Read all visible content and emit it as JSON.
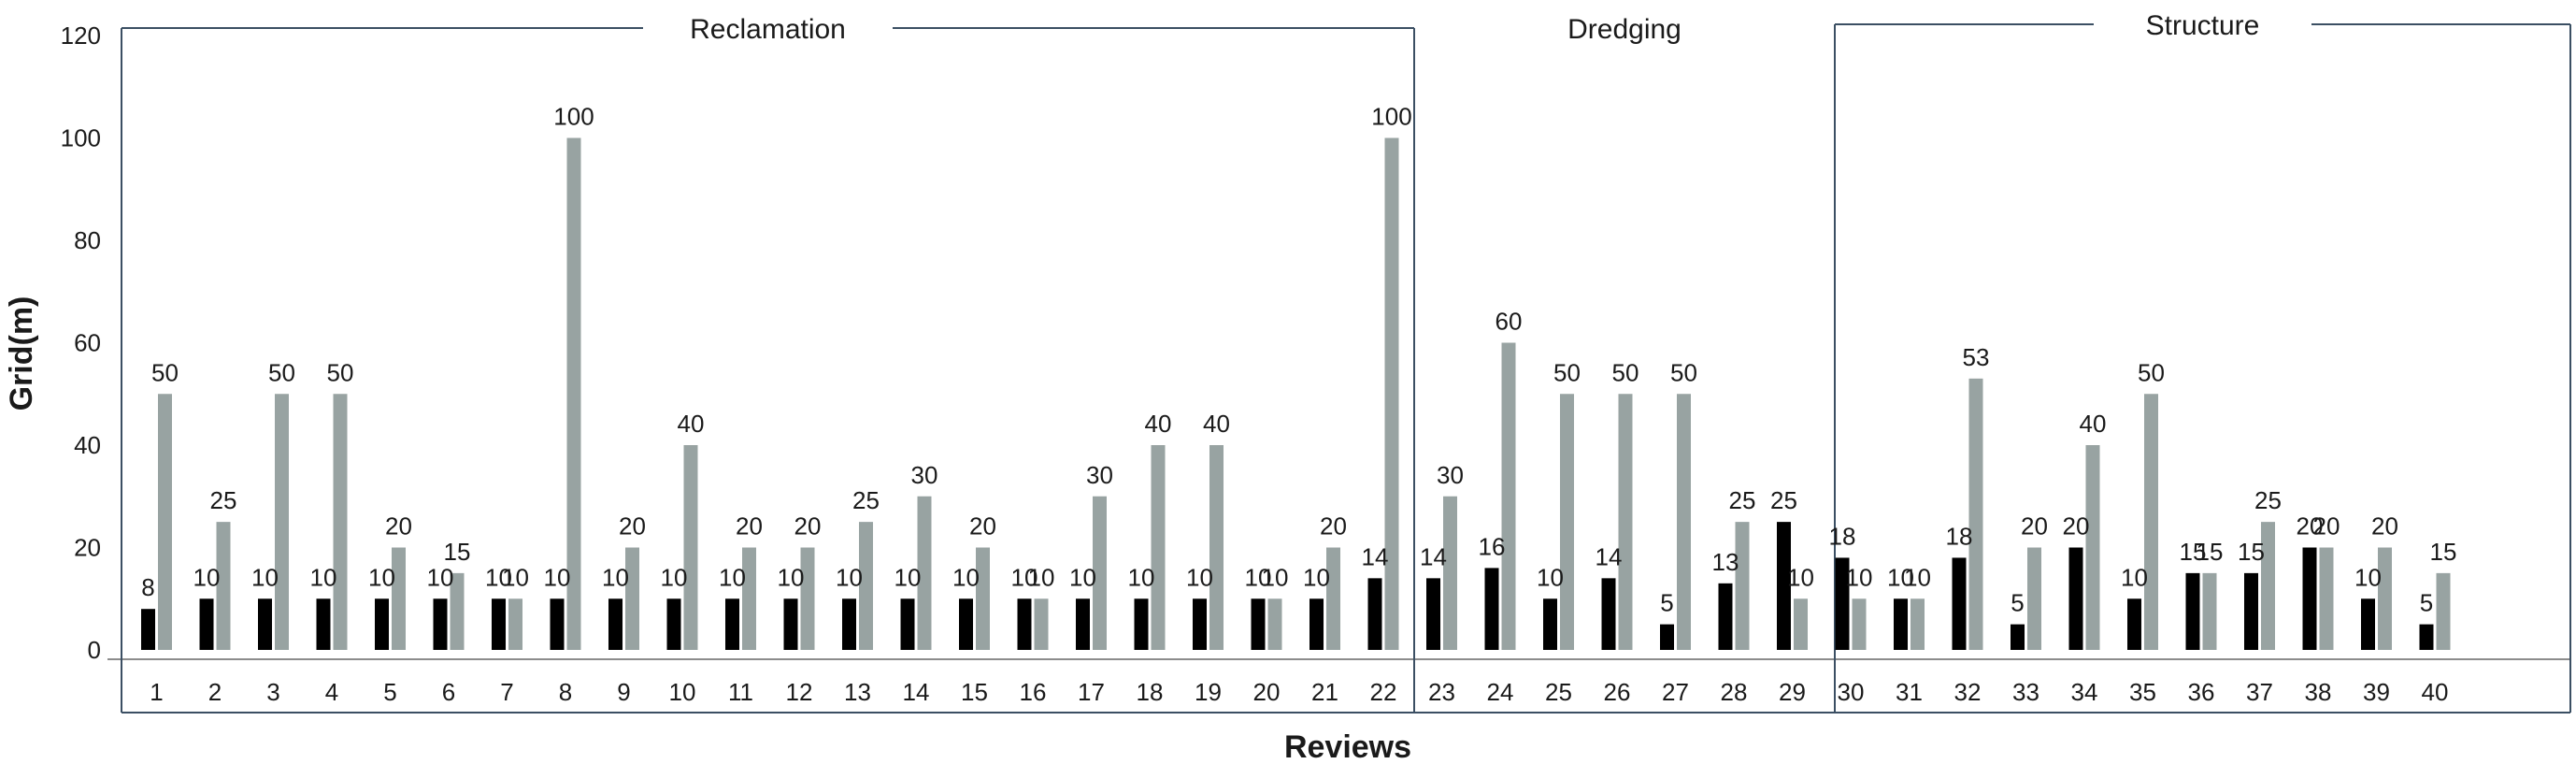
{
  "colors": {
    "series1": "#000000",
    "series2": "#98a3a2",
    "frame": "#3b4f63",
    "axis": "#8c8c8c"
  },
  "chart_data": {
    "type": "bar",
    "xlabel": "Reviews",
    "ylabel": "Grid(m)",
    "ylim": [
      0,
      120
    ],
    "yticks": [
      "0",
      "20",
      "40",
      "60",
      "80",
      "100",
      "120"
    ],
    "grid": false,
    "categories": [
      "1",
      "2",
      "3",
      "4",
      "5",
      "6",
      "7",
      "8",
      "9",
      "10",
      "11",
      "12",
      "13",
      "14",
      "15",
      "16",
      "17",
      "18",
      "19",
      "20",
      "21",
      "22",
      "23",
      "24",
      "25",
      "26",
      "27",
      "28",
      "29",
      "30",
      "31",
      "32",
      "33",
      "34",
      "35",
      "36",
      "37",
      "38",
      "39",
      "40"
    ],
    "series": [
      {
        "values": [
          8,
          10,
          10,
          10,
          10,
          10,
          10,
          10,
          10,
          10,
          10,
          10,
          10,
          10,
          10,
          10,
          10,
          10,
          10,
          10,
          10,
          14,
          14,
          16,
          10,
          14,
          5,
          13,
          25,
          18,
          10,
          18,
          5,
          20,
          10,
          15,
          15,
          20,
          10,
          5
        ]
      },
      {
        "values": [
          50,
          25,
          50,
          50,
          20,
          15,
          10,
          100,
          20,
          40,
          20,
          20,
          25,
          30,
          20,
          10,
          30,
          40,
          40,
          10,
          20,
          100,
          30,
          60,
          50,
          50,
          50,
          25,
          10,
          10,
          10,
          53,
          20,
          40,
          50,
          15,
          25,
          20,
          20,
          15
        ]
      }
    ],
    "groups": [
      {
        "label": "Reclamation",
        "from": 1,
        "to": 21
      },
      {
        "label": "Dredging",
        "from": 22,
        "to": 28
      },
      {
        "label": "Structure",
        "from": 29,
        "to": 40
      }
    ]
  }
}
